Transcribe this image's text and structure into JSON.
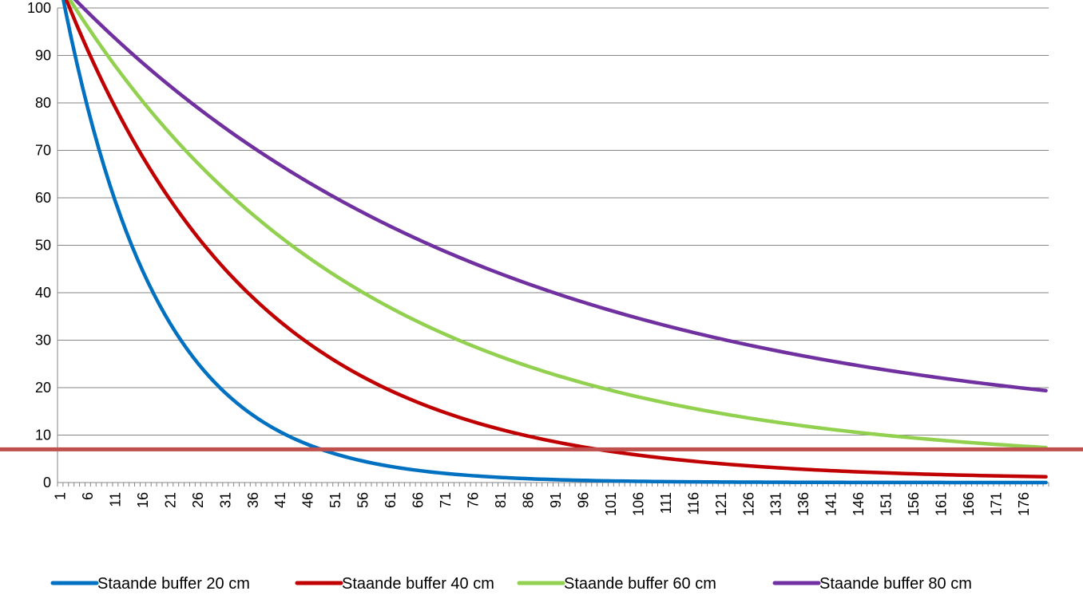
{
  "chart_data": {
    "type": "line",
    "title": "",
    "xlabel": "",
    "ylabel": "",
    "x_start": 1,
    "x_end": 180,
    "x_tick_labels": [
      "1",
      "6",
      "11",
      "16",
      "21",
      "26",
      "31",
      "36",
      "41",
      "46",
      "51",
      "56",
      "61",
      "66",
      "71",
      "76",
      "81",
      "86",
      "91",
      "96",
      "101",
      "106",
      "111",
      "116",
      "121",
      "126",
      "131",
      "136",
      "141",
      "146",
      "151",
      "156",
      "161",
      "166",
      "171",
      "176"
    ],
    "ylim": [
      0,
      100
    ],
    "y_ticks": [
      0,
      10,
      20,
      30,
      40,
      50,
      60,
      70,
      80,
      90,
      100
    ],
    "grid": "horizontal",
    "legend_position": "bottom",
    "series": [
      {
        "name": "Staande buffer 20 cm",
        "color": "#0070C0",
        "start": 105,
        "decay_per_step": 0.9444,
        "end_value": 0
      },
      {
        "name": "Staande buffer 40 cm",
        "color": "#C00000",
        "start": 105,
        "decay_per_step": 0.9718,
        "end_value": 0.6
      },
      {
        "name": "Staande buffer 60 cm",
        "color": "#92D050",
        "start": 105,
        "decay_per_step": 0.9815,
        "end_value": 3.8
      },
      {
        "name": "Staande buffer 80 cm",
        "color": "#7030A0",
        "start": 105,
        "decay_per_step": 0.9873,
        "end_value": 9.7
      }
    ],
    "reference_line": {
      "y": 7,
      "color": "#C0504D"
    }
  }
}
